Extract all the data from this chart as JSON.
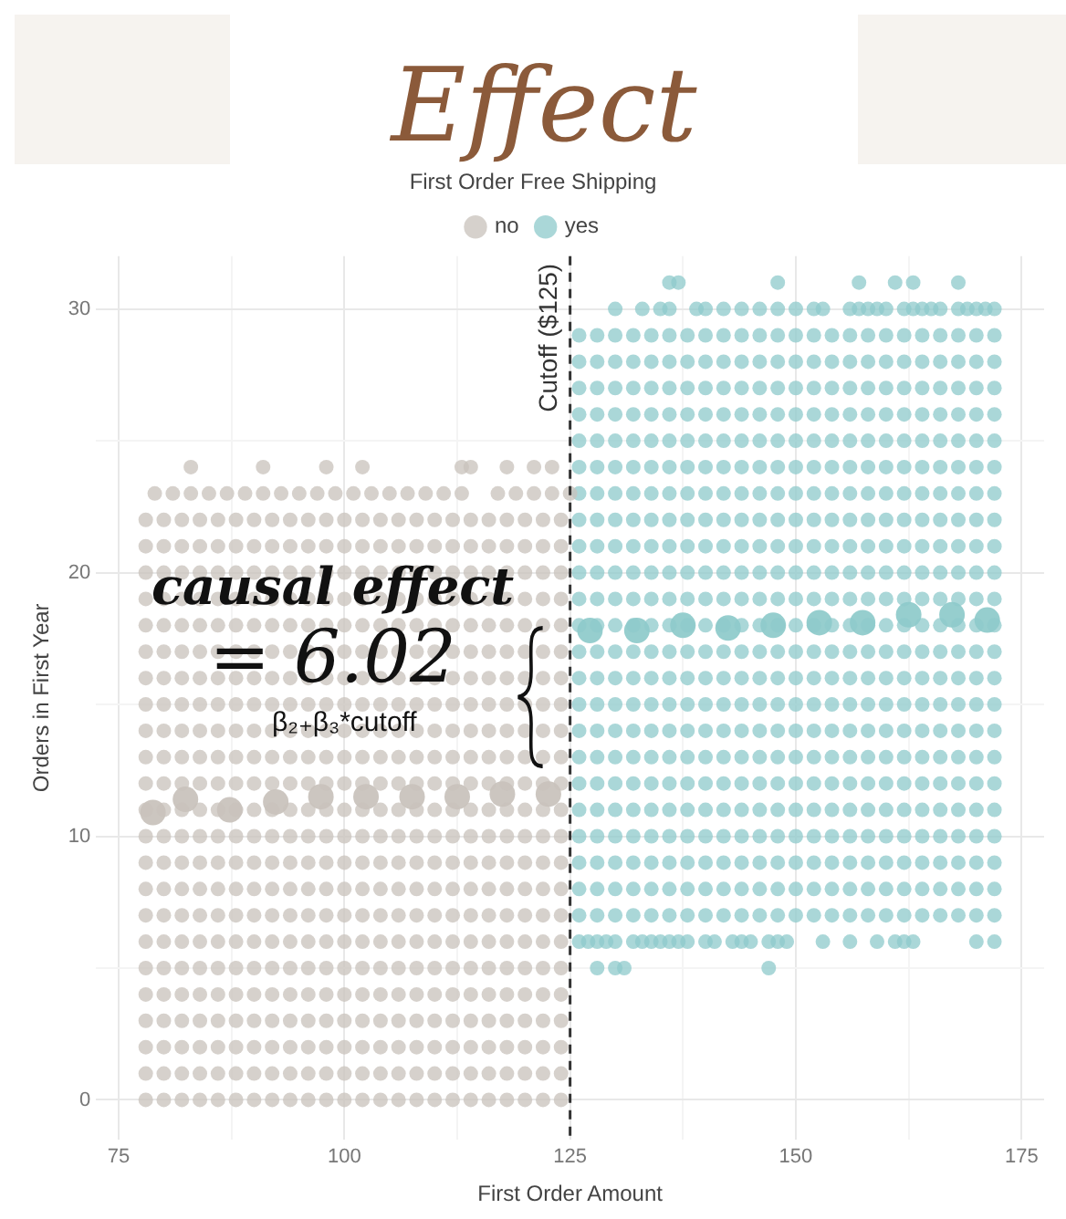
{
  "chart_data": {
    "type": "scatter",
    "title": "Effect",
    "xlabel": "First Order Amount",
    "ylabel": "Orders in First Year",
    "legend_title": "First Order Free Shipping",
    "legend": "top",
    "grid": true,
    "marker": "circle",
    "xlim": [
      72.5,
      177.5
    ],
    "ylim": [
      -1.5,
      32
    ],
    "xticks": [
      75,
      {
        "value": 87.5,
        "label": null
      },
      100,
      {
        "value": 112.5,
        "label": null
      },
      125,
      {
        "value": 137.5,
        "label": null
      },
      150,
      {
        "value": 162.5,
        "label": null
      },
      175
    ],
    "yticks": [
      0,
      {
        "value": 5,
        "label": null
      },
      10,
      {
        "value": 15,
        "label": null
      },
      20,
      {
        "value": 25,
        "label": null
      },
      30
    ],
    "ref_lines": [
      {
        "axis": "x",
        "value": 125,
        "label": "Cutoff ($125)",
        "line_style": "dashed",
        "color": "#333333"
      }
    ],
    "annotations": [
      {
        "text": "causal effect",
        "x": 125,
        "y": 19.3
      },
      {
        "text": "= 6.02",
        "x": 125,
        "y": 16.6
      },
      "β₂₊β₃*cutoff"
    ],
    "series": [
      {
        "name": "no",
        "color": "#c8c2bb",
        "x": [
          78,
          80,
          82,
          84,
          86,
          88,
          90,
          92,
          94,
          96,
          98,
          100,
          102,
          104,
          106,
          108,
          110,
          112,
          114,
          116,
          118,
          120,
          122,
          124,
          78,
          80,
          82,
          84,
          86,
          88,
          90,
          92,
          94,
          96,
          98,
          100,
          102,
          104,
          106,
          108,
          110,
          112,
          114,
          116,
          118,
          120,
          122,
          124,
          78,
          80,
          82,
          84,
          86,
          88,
          90,
          92,
          94,
          96,
          98,
          100,
          102,
          104,
          106,
          108,
          110,
          112,
          114,
          116,
          118,
          120,
          122,
          124,
          78,
          80,
          82,
          84,
          86,
          88,
          90,
          92,
          94,
          96,
          98,
          100,
          102,
          104,
          106,
          108,
          110,
          112,
          114,
          116,
          118,
          120,
          122,
          124,
          78,
          80,
          82,
          84,
          86,
          88,
          90,
          92,
          94,
          96,
          98,
          100,
          102,
          104,
          106,
          108,
          110,
          112,
          114,
          116,
          118,
          120,
          122,
          124,
          78,
          80,
          82,
          84,
          86,
          88,
          90,
          92,
          94,
          96,
          98,
          100,
          102,
          104,
          106,
          108,
          110,
          112,
          114,
          116,
          118,
          120,
          122,
          124,
          78,
          80,
          82,
          84,
          86,
          88,
          90,
          92,
          94,
          96,
          98,
          100,
          102,
          104,
          106,
          108,
          110,
          112,
          114,
          116,
          118,
          120,
          122,
          124,
          78,
          80,
          82,
          84,
          86,
          88,
          90,
          92,
          94,
          96,
          98,
          100,
          102,
          104,
          106,
          108,
          110,
          112,
          114,
          116,
          118,
          120,
          122,
          124,
          78,
          80,
          82,
          84,
          86,
          88,
          90,
          92,
          94,
          96,
          98,
          100,
          102,
          104,
          106,
          108,
          110,
          112,
          114,
          116,
          118,
          120,
          122,
          124,
          78,
          80,
          82,
          84,
          86,
          88,
          90,
          92,
          94,
          96,
          98,
          100,
          102,
          104,
          106,
          108,
          110,
          112,
          114,
          116,
          118,
          120,
          122,
          124,
          78,
          80,
          82,
          84,
          86,
          88,
          90,
          92,
          94,
          96,
          98,
          100,
          102,
          104,
          106,
          108,
          110,
          112,
          114,
          116,
          118,
          120,
          122,
          124,
          78,
          80,
          82,
          84,
          86,
          88,
          90,
          92,
          94,
          96,
          98,
          100,
          102,
          104,
          106,
          108,
          110,
          112,
          114,
          116,
          118,
          120,
          122,
          124,
          78,
          80,
          82,
          84,
          86,
          88,
          90,
          92,
          94,
          96,
          98,
          100,
          102,
          104,
          106,
          108,
          110,
          112,
          114,
          116,
          118,
          120,
          122,
          124,
          78,
          80,
          82,
          84,
          86,
          88,
          90,
          92,
          94,
          96,
          98,
          100,
          102,
          104,
          106,
          108,
          110,
          112,
          114,
          116,
          118,
          120,
          122,
          124,
          78,
          80,
          82,
          84,
          86,
          88,
          90,
          92,
          94,
          96,
          98,
          100,
          102,
          104,
          106,
          108,
          110,
          112,
          114,
          116,
          118,
          120,
          122,
          124,
          78,
          80,
          82,
          84,
          86,
          88,
          90,
          92,
          94,
          96,
          98,
          100,
          102,
          104,
          106,
          108,
          110,
          112,
          114,
          116,
          118,
          120,
          122,
          124,
          78,
          80,
          82,
          84,
          86,
          88,
          90,
          92,
          94,
          96,
          98,
          100,
          102,
          104,
          106,
          108,
          110,
          112,
          114,
          116,
          118,
          120,
          122,
          124,
          78,
          80,
          82,
          84,
          86,
          88,
          90,
          92,
          94,
          96,
          98,
          100,
          102,
          104,
          106,
          108,
          110,
          112,
          114,
          116,
          118,
          120,
          122,
          124,
          78,
          80,
          82,
          84,
          86,
          88,
          90,
          92,
          94,
          96,
          98,
          100,
          102,
          104,
          106,
          108,
          110,
          112,
          114,
          116,
          118,
          120,
          122,
          124,
          78,
          80,
          82,
          84,
          86,
          88,
          90,
          92,
          94,
          96,
          98,
          100,
          102,
          104,
          106,
          108,
          110,
          112,
          114,
          116,
          118,
          120,
          122,
          124,
          78,
          80,
          82,
          84,
          86,
          88,
          90,
          92,
          94,
          96,
          98,
          100,
          102,
          104,
          106,
          108,
          110,
          112,
          114,
          116,
          118,
          120,
          122,
          124,
          78,
          80,
          82,
          84,
          86,
          88,
          90,
          92,
          94,
          96,
          98,
          100,
          102,
          104,
          106,
          108,
          110,
          112,
          114,
          116,
          118,
          120,
          122,
          124,
          78,
          80,
          82,
          84,
          86,
          88,
          90,
          92,
          94,
          96,
          98,
          100,
          102,
          104,
          106,
          108,
          110,
          112,
          114,
          116,
          118,
          120,
          122,
          124,
          79,
          81,
          83,
          85,
          87,
          89,
          91,
          93,
          95,
          97,
          99,
          101,
          103,
          105,
          107,
          109,
          111,
          113,
          117,
          119,
          121,
          123,
          125,
          83,
          91,
          98,
          102,
          113,
          114,
          118,
          121,
          123
        ],
        "values": [
          0,
          0,
          0,
          0,
          0,
          0,
          0,
          0,
          0,
          0,
          0,
          0,
          0,
          0,
          0,
          0,
          0,
          0,
          0,
          0,
          0,
          0,
          0,
          0,
          1,
          1,
          1,
          1,
          1,
          1,
          1,
          1,
          1,
          1,
          1,
          1,
          1,
          1,
          1,
          1,
          1,
          1,
          1,
          1,
          1,
          1,
          1,
          1,
          2,
          2,
          2,
          2,
          2,
          2,
          2,
          2,
          2,
          2,
          2,
          2,
          2,
          2,
          2,
          2,
          2,
          2,
          2,
          2,
          2,
          2,
          2,
          2,
          3,
          3,
          3,
          3,
          3,
          3,
          3,
          3,
          3,
          3,
          3,
          3,
          3,
          3,
          3,
          3,
          3,
          3,
          3,
          3,
          3,
          3,
          3,
          3,
          4,
          4,
          4,
          4,
          4,
          4,
          4,
          4,
          4,
          4,
          4,
          4,
          4,
          4,
          4,
          4,
          4,
          4,
          4,
          4,
          4,
          4,
          4,
          4,
          5,
          5,
          5,
          5,
          5,
          5,
          5,
          5,
          5,
          5,
          5,
          5,
          5,
          5,
          5,
          5,
          5,
          5,
          5,
          5,
          5,
          5,
          5,
          5,
          6,
          6,
          6,
          6,
          6,
          6,
          6,
          6,
          6,
          6,
          6,
          6,
          6,
          6,
          6,
          6,
          6,
          6,
          6,
          6,
          6,
          6,
          6,
          6,
          7,
          7,
          7,
          7,
          7,
          7,
          7,
          7,
          7,
          7,
          7,
          7,
          7,
          7,
          7,
          7,
          7,
          7,
          7,
          7,
          7,
          7,
          7,
          7,
          8,
          8,
          8,
          8,
          8,
          8,
          8,
          8,
          8,
          8,
          8,
          8,
          8,
          8,
          8,
          8,
          8,
          8,
          8,
          8,
          8,
          8,
          8,
          8,
          9,
          9,
          9,
          9,
          9,
          9,
          9,
          9,
          9,
          9,
          9,
          9,
          9,
          9,
          9,
          9,
          9,
          9,
          9,
          9,
          9,
          9,
          9,
          9,
          10,
          10,
          10,
          10,
          10,
          10,
          10,
          10,
          10,
          10,
          10,
          10,
          10,
          10,
          10,
          10,
          10,
          10,
          10,
          10,
          10,
          10,
          10,
          10,
          11,
          11,
          11,
          11,
          11,
          11,
          11,
          11,
          11,
          11,
          11,
          11,
          11,
          11,
          11,
          11,
          11,
          11,
          11,
          11,
          11,
          11,
          11,
          11,
          12,
          12,
          12,
          12,
          12,
          12,
          12,
          12,
          12,
          12,
          12,
          12,
          12,
          12,
          12,
          12,
          12,
          12,
          12,
          12,
          12,
          12,
          12,
          12,
          13,
          13,
          13,
          13,
          13,
          13,
          13,
          13,
          13,
          13,
          13,
          13,
          13,
          13,
          13,
          13,
          13,
          13,
          13,
          13,
          13,
          13,
          13,
          13,
          14,
          14,
          14,
          14,
          14,
          14,
          14,
          14,
          14,
          14,
          14,
          14,
          14,
          14,
          14,
          14,
          14,
          14,
          14,
          14,
          14,
          14,
          14,
          14,
          15,
          15,
          15,
          15,
          15,
          15,
          15,
          15,
          15,
          15,
          15,
          15,
          15,
          15,
          15,
          15,
          15,
          15,
          15,
          15,
          15,
          15,
          15,
          15,
          16,
          16,
          16,
          16,
          16,
          16,
          16,
          16,
          16,
          16,
          16,
          16,
          16,
          16,
          16,
          16,
          16,
          16,
          16,
          16,
          16,
          16,
          16,
          16,
          17,
          17,
          17,
          17,
          17,
          17,
          17,
          17,
          17,
          17,
          17,
          17,
          17,
          17,
          17,
          17,
          17,
          17,
          17,
          17,
          17,
          17,
          17,
          17,
          18,
          18,
          18,
          18,
          18,
          18,
          18,
          18,
          18,
          18,
          18,
          18,
          18,
          18,
          18,
          18,
          18,
          18,
          18,
          18,
          18,
          18,
          18,
          18,
          19,
          19,
          19,
          19,
          19,
          19,
          19,
          19,
          19,
          19,
          19,
          19,
          19,
          19,
          19,
          19,
          19,
          19,
          19,
          19,
          19,
          19,
          19,
          19,
          20,
          20,
          20,
          20,
          20,
          20,
          20,
          20,
          20,
          20,
          20,
          20,
          20,
          20,
          20,
          20,
          20,
          20,
          20,
          20,
          20,
          20,
          20,
          20,
          21,
          21,
          21,
          21,
          21,
          21,
          21,
          21,
          21,
          21,
          21,
          21,
          21,
          21,
          21,
          21,
          21,
          21,
          21,
          21,
          21,
          21,
          21,
          21,
          22,
          22,
          22,
          22,
          22,
          22,
          22,
          22,
          22,
          22,
          22,
          22,
          22,
          22,
          22,
          22,
          22,
          22,
          22,
          22,
          22,
          22,
          22,
          22,
          23,
          23,
          23,
          23,
          23,
          23,
          23,
          23,
          23,
          23,
          23,
          23,
          23,
          23,
          23,
          23,
          23,
          23,
          23,
          23,
          23,
          23,
          23,
          24,
          24,
          24,
          24,
          24,
          24,
          24,
          24,
          24
        ]
      },
      {
        "name": "yes",
        "color": "#8ecacb",
        "x": [
          128,
          130,
          131,
          147,
          126,
          127,
          128,
          129,
          130,
          132,
          133,
          134,
          135,
          136,
          137,
          138,
          140,
          141,
          143,
          144,
          145,
          147,
          148,
          149,
          153,
          156,
          159,
          161,
          162,
          163,
          170,
          172,
          126,
          128,
          130,
          132,
          134,
          136,
          138,
          140,
          142,
          144,
          146,
          148,
          150,
          152,
          154,
          156,
          158,
          160,
          162,
          164,
          166,
          168,
          170,
          172,
          126,
          128,
          130,
          132,
          134,
          136,
          138,
          140,
          142,
          144,
          146,
          148,
          150,
          152,
          154,
          156,
          158,
          160,
          162,
          164,
          166,
          168,
          170,
          172,
          126,
          128,
          130,
          132,
          134,
          136,
          138,
          140,
          142,
          144,
          146,
          148,
          150,
          152,
          154,
          156,
          158,
          160,
          162,
          164,
          166,
          168,
          170,
          172,
          126,
          128,
          130,
          132,
          134,
          136,
          138,
          140,
          142,
          144,
          146,
          148,
          150,
          152,
          154,
          156,
          158,
          160,
          162,
          164,
          166,
          168,
          170,
          172,
          126,
          128,
          130,
          132,
          134,
          136,
          138,
          140,
          142,
          144,
          146,
          148,
          150,
          152,
          154,
          156,
          158,
          160,
          162,
          164,
          166,
          168,
          170,
          172,
          126,
          128,
          130,
          132,
          134,
          136,
          138,
          140,
          142,
          144,
          146,
          148,
          150,
          152,
          154,
          156,
          158,
          160,
          162,
          164,
          166,
          168,
          170,
          172,
          126,
          128,
          130,
          132,
          134,
          136,
          138,
          140,
          142,
          144,
          146,
          148,
          150,
          152,
          154,
          156,
          158,
          160,
          162,
          164,
          166,
          168,
          170,
          172,
          126,
          128,
          130,
          132,
          134,
          136,
          138,
          140,
          142,
          144,
          146,
          148,
          150,
          152,
          154,
          156,
          158,
          160,
          162,
          164,
          166,
          168,
          170,
          172,
          126,
          128,
          130,
          132,
          134,
          136,
          138,
          140,
          142,
          144,
          146,
          148,
          150,
          152,
          154,
          156,
          158,
          160,
          162,
          164,
          166,
          168,
          170,
          172,
          126,
          128,
          130,
          132,
          134,
          136,
          138,
          140,
          142,
          144,
          146,
          148,
          150,
          152,
          154,
          156,
          158,
          160,
          162,
          164,
          166,
          168,
          170,
          172,
          126,
          128,
          130,
          132,
          134,
          136,
          138,
          140,
          142,
          144,
          146,
          148,
          150,
          152,
          154,
          156,
          158,
          160,
          162,
          164,
          166,
          168,
          170,
          172,
          126,
          128,
          130,
          132,
          134,
          136,
          138,
          140,
          142,
          144,
          146,
          148,
          150,
          152,
          154,
          156,
          158,
          160,
          162,
          164,
          166,
          168,
          170,
          172,
          126,
          128,
          130,
          132,
          134,
          136,
          138,
          140,
          142,
          144,
          146,
          148,
          150,
          152,
          154,
          156,
          158,
          160,
          162,
          164,
          166,
          168,
          170,
          172,
          126,
          128,
          130,
          132,
          134,
          136,
          138,
          140,
          142,
          144,
          146,
          148,
          150,
          152,
          154,
          156,
          158,
          160,
          162,
          164,
          166,
          168,
          170,
          172,
          126,
          128,
          130,
          132,
          134,
          136,
          138,
          140,
          142,
          144,
          146,
          148,
          150,
          152,
          154,
          156,
          158,
          160,
          162,
          164,
          166,
          168,
          170,
          172,
          126,
          128,
          130,
          132,
          134,
          136,
          138,
          140,
          142,
          144,
          146,
          148,
          150,
          152,
          154,
          156,
          158,
          160,
          162,
          164,
          166,
          168,
          170,
          172,
          126,
          128,
          130,
          132,
          134,
          136,
          138,
          140,
          142,
          144,
          146,
          148,
          150,
          152,
          154,
          156,
          158,
          160,
          162,
          164,
          166,
          168,
          170,
          172,
          126,
          128,
          130,
          132,
          134,
          136,
          138,
          140,
          142,
          144,
          146,
          148,
          150,
          152,
          154,
          156,
          158,
          160,
          162,
          164,
          166,
          168,
          170,
          172,
          126,
          128,
          130,
          132,
          134,
          136,
          138,
          140,
          142,
          144,
          146,
          148,
          150,
          152,
          154,
          156,
          158,
          160,
          162,
          164,
          166,
          168,
          170,
          172,
          126,
          128,
          130,
          132,
          134,
          136,
          138,
          140,
          142,
          144,
          146,
          148,
          150,
          152,
          154,
          156,
          158,
          160,
          162,
          164,
          166,
          168,
          170,
          172,
          126,
          128,
          130,
          132,
          134,
          136,
          138,
          140,
          142,
          144,
          146,
          148,
          150,
          152,
          154,
          156,
          158,
          160,
          162,
          164,
          166,
          168,
          170,
          172,
          126,
          128,
          130,
          132,
          134,
          136,
          138,
          140,
          142,
          144,
          146,
          148,
          150,
          152,
          154,
          156,
          158,
          160,
          162,
          164,
          166,
          168,
          170,
          172,
          126,
          128,
          130,
          132,
          134,
          136,
          138,
          140,
          142,
          144,
          146,
          148,
          150,
          152,
          154,
          156,
          158,
          160,
          162,
          164,
          166,
          168,
          170,
          172,
          130,
          133,
          135,
          136,
          139,
          140,
          142,
          144,
          146,
          148,
          150,
          152,
          153,
          156,
          157,
          158,
          159,
          160,
          162,
          163,
          164,
          165,
          166,
          168,
          169,
          170,
          171,
          172,
          136,
          137,
          148,
          157,
          161,
          163,
          168
        ],
        "values": [
          5,
          5,
          5,
          5,
          6,
          6,
          6,
          6,
          6,
          6,
          6,
          6,
          6,
          6,
          6,
          6,
          6,
          6,
          6,
          6,
          6,
          6,
          6,
          6,
          6,
          6,
          6,
          6,
          6,
          6,
          6,
          6,
          7,
          7,
          7,
          7,
          7,
          7,
          7,
          7,
          7,
          7,
          7,
          7,
          7,
          7,
          7,
          7,
          7,
          7,
          7,
          7,
          7,
          7,
          7,
          7,
          8,
          8,
          8,
          8,
          8,
          8,
          8,
          8,
          8,
          8,
          8,
          8,
          8,
          8,
          8,
          8,
          8,
          8,
          8,
          8,
          8,
          8,
          8,
          8,
          9,
          9,
          9,
          9,
          9,
          9,
          9,
          9,
          9,
          9,
          9,
          9,
          9,
          9,
          9,
          9,
          9,
          9,
          9,
          9,
          9,
          9,
          9,
          9,
          10,
          10,
          10,
          10,
          10,
          10,
          10,
          10,
          10,
          10,
          10,
          10,
          10,
          10,
          10,
          10,
          10,
          10,
          10,
          10,
          10,
          10,
          10,
          10,
          11,
          11,
          11,
          11,
          11,
          11,
          11,
          11,
          11,
          11,
          11,
          11,
          11,
          11,
          11,
          11,
          11,
          11,
          11,
          11,
          11,
          11,
          11,
          11,
          12,
          12,
          12,
          12,
          12,
          12,
          12,
          12,
          12,
          12,
          12,
          12,
          12,
          12,
          12,
          12,
          12,
          12,
          12,
          12,
          12,
          12,
          12,
          12,
          13,
          13,
          13,
          13,
          13,
          13,
          13,
          13,
          13,
          13,
          13,
          13,
          13,
          13,
          13,
          13,
          13,
          13,
          13,
          13,
          13,
          13,
          13,
          13,
          14,
          14,
          14,
          14,
          14,
          14,
          14,
          14,
          14,
          14,
          14,
          14,
          14,
          14,
          14,
          14,
          14,
          14,
          14,
          14,
          14,
          14,
          14,
          14,
          15,
          15,
          15,
          15,
          15,
          15,
          15,
          15,
          15,
          15,
          15,
          15,
          15,
          15,
          15,
          15,
          15,
          15,
          15,
          15,
          15,
          15,
          15,
          15,
          16,
          16,
          16,
          16,
          16,
          16,
          16,
          16,
          16,
          16,
          16,
          16,
          16,
          16,
          16,
          16,
          16,
          16,
          16,
          16,
          16,
          16,
          16,
          16,
          17,
          17,
          17,
          17,
          17,
          17,
          17,
          17,
          17,
          17,
          17,
          17,
          17,
          17,
          17,
          17,
          17,
          17,
          17,
          17,
          17,
          17,
          17,
          17,
          18,
          18,
          18,
          18,
          18,
          18,
          18,
          18,
          18,
          18,
          18,
          18,
          18,
          18,
          18,
          18,
          18,
          18,
          18,
          18,
          18,
          18,
          18,
          18,
          19,
          19,
          19,
          19,
          19,
          19,
          19,
          19,
          19,
          19,
          19,
          19,
          19,
          19,
          19,
          19,
          19,
          19,
          19,
          19,
          19,
          19,
          19,
          19,
          20,
          20,
          20,
          20,
          20,
          20,
          20,
          20,
          20,
          20,
          20,
          20,
          20,
          20,
          20,
          20,
          20,
          20,
          20,
          20,
          20,
          20,
          20,
          20,
          21,
          21,
          21,
          21,
          21,
          21,
          21,
          21,
          21,
          21,
          21,
          21,
          21,
          21,
          21,
          21,
          21,
          21,
          21,
          21,
          21,
          21,
          21,
          21,
          22,
          22,
          22,
          22,
          22,
          22,
          22,
          22,
          22,
          22,
          22,
          22,
          22,
          22,
          22,
          22,
          22,
          22,
          22,
          22,
          22,
          22,
          22,
          22,
          23,
          23,
          23,
          23,
          23,
          23,
          23,
          23,
          23,
          23,
          23,
          23,
          23,
          23,
          23,
          23,
          23,
          23,
          23,
          23,
          23,
          23,
          23,
          23,
          24,
          24,
          24,
          24,
          24,
          24,
          24,
          24,
          24,
          24,
          24,
          24,
          24,
          24,
          24,
          24,
          24,
          24,
          24,
          24,
          24,
          24,
          24,
          24,
          25,
          25,
          25,
          25,
          25,
          25,
          25,
          25,
          25,
          25,
          25,
          25,
          25,
          25,
          25,
          25,
          25,
          25,
          25,
          25,
          25,
          25,
          25,
          25,
          26,
          26,
          26,
          26,
          26,
          26,
          26,
          26,
          26,
          26,
          26,
          26,
          26,
          26,
          26,
          26,
          26,
          26,
          26,
          26,
          26,
          26,
          26,
          26,
          27,
          27,
          27,
          27,
          27,
          27,
          27,
          27,
          27,
          27,
          27,
          27,
          27,
          27,
          27,
          27,
          27,
          27,
          27,
          27,
          27,
          27,
          27,
          27,
          28,
          28,
          28,
          28,
          28,
          28,
          28,
          28,
          28,
          28,
          28,
          28,
          28,
          28,
          28,
          28,
          28,
          28,
          28,
          28,
          28,
          28,
          28,
          28,
          29,
          29,
          29,
          29,
          29,
          29,
          29,
          29,
          29,
          29,
          29,
          29,
          29,
          29,
          29,
          29,
          29,
          29,
          29,
          29,
          29,
          29,
          29,
          29,
          30,
          30,
          30,
          30,
          30,
          30,
          30,
          30,
          30,
          30,
          30,
          30,
          30,
          30,
          30,
          30,
          30,
          30,
          30,
          30,
          30,
          30,
          30,
          30,
          30,
          30,
          30,
          30,
          31,
          31,
          31,
          31,
          31,
          31,
          31
        ]
      },
      {
        "color": "#c8c2bb",
        "x": [
          78.8,
          82.4,
          87.3,
          92.4,
          97.4,
          102.4,
          107.5,
          112.5,
          117.5,
          122.6
        ],
        "values": [
          10.9,
          11.4,
          11.0,
          11.3,
          11.5,
          11.5,
          11.5,
          11.5,
          11.6,
          11.6
        ]
      },
      {
        "color": "#8ecacb",
        "x": [
          127.2,
          132.4,
          137.5,
          142.5,
          147.5,
          152.6,
          157.4,
          162.5,
          167.3,
          171.2
        ],
        "values": [
          17.8,
          17.8,
          18.0,
          17.9,
          18.0,
          18.1,
          18.1,
          18.4,
          18.4,
          18.2
        ]
      }
    ]
  }
}
